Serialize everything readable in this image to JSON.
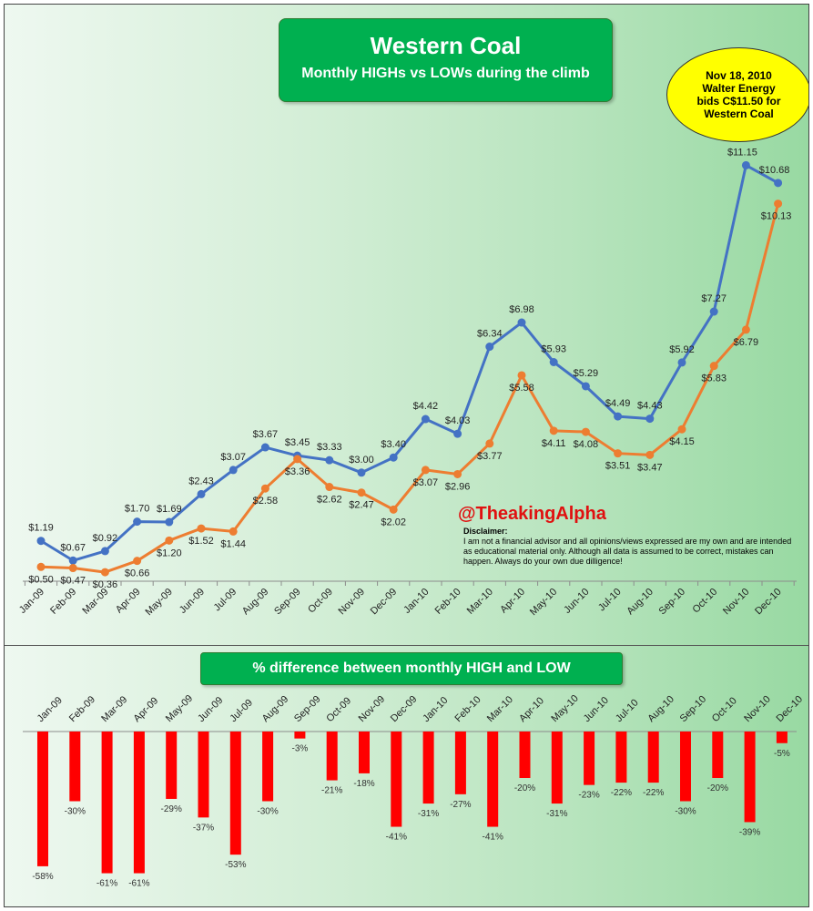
{
  "title": "Western Coal",
  "subtitle": "Monthly HIGHs vs LOWs during the climb",
  "bar_chart_title": "% difference between monthly HIGH and LOW",
  "annotation": {
    "lines": [
      "Nov 18, 2010",
      "Walter Energy",
      "bids C$11.50 for",
      "Western Coal"
    ]
  },
  "handle": "@TheakingAlpha",
  "disclaimer": {
    "heading": "Disclaimer:",
    "text": "I am not a financial advisor and all opinions/views expressed are my own and are intended as educational material only.  Although all data is assumed to be correct, mistakes can happen. Always do your own due dilligence!"
  },
  "colors": {
    "high": "#4472c4",
    "low": "#ed7d31",
    "bar": "#ff0000",
    "title_box": "#00b050",
    "annotation": "#ffff00"
  },
  "chart_data": [
    {
      "type": "line",
      "title": "Monthly HIGHs vs LOWs during the climb",
      "categories": [
        "Jan-09",
        "Feb-09",
        "Mar-09",
        "Apr-09",
        "May-09",
        "Jun-09",
        "Jul-09",
        "Aug-09",
        "Sep-09",
        "Oct-09",
        "Nov-09",
        "Dec-09",
        "Jan-10",
        "Feb-10",
        "Mar-10",
        "Apr-10",
        "May-10",
        "Jun-10",
        "Jul-10",
        "Aug-10",
        "Sep-10",
        "Oct-10",
        "Nov-10",
        "Dec-10"
      ],
      "series": [
        {
          "name": "High",
          "values": [
            1.19,
            0.67,
            0.92,
            1.7,
            1.69,
            2.43,
            3.07,
            3.67,
            3.45,
            3.33,
            3.0,
            3.4,
            4.42,
            4.03,
            6.34,
            6.98,
            5.93,
            5.29,
            4.49,
            4.43,
            5.92,
            7.27,
            11.15,
            10.68
          ],
          "labels": [
            "$1.19",
            "$0.67",
            "$0.92",
            "$1.70",
            "$1.69",
            "$2.43",
            "$3.07",
            "$3.67",
            "$3.45",
            "$3.33",
            "$3.00",
            "$3.40",
            "$4.42",
            "$4.03",
            "$6.34",
            "$6.98",
            "$5.93",
            "$5.29",
            "$4.49",
            "$4.43",
            "$5.92",
            "$7.27",
            "$11.15",
            "$10.68"
          ]
        },
        {
          "name": "Low",
          "values": [
            0.5,
            0.47,
            0.36,
            0.66,
            1.2,
            1.52,
            1.44,
            2.58,
            3.36,
            2.62,
            2.47,
            2.02,
            3.07,
            2.96,
            3.77,
            5.58,
            4.11,
            4.08,
            3.51,
            3.47,
            4.15,
            5.83,
            6.79,
            10.13
          ],
          "labels": [
            "$0.50",
            "$0.47",
            "$0.36",
            "$0.66",
            "$1.20",
            "$1.52",
            "$1.44",
            "$2.58",
            "$3.36",
            "$2.62",
            "$2.47",
            "$2.02",
            "$3.07",
            "$2.96",
            "$3.77",
            "$5.58",
            "$4.11",
            "$4.08",
            "$3.51",
            "$3.47",
            "$4.15",
            "$5.83",
            "$6.79",
            "$10.13"
          ]
        }
      ],
      "ylim": [
        0,
        12.4
      ],
      "grid": false
    },
    {
      "type": "bar",
      "title": "% difference between monthly HIGH and LOW",
      "categories": [
        "Jan-09",
        "Feb-09",
        "Mar-09",
        "Apr-09",
        "May-09",
        "Jun-09",
        "Jul-09",
        "Aug-09",
        "Sep-09",
        "Oct-09",
        "Nov-09",
        "Dec-09",
        "Jan-10",
        "Feb-10",
        "Mar-10",
        "Apr-10",
        "May-10",
        "Jun-10",
        "Jul-10",
        "Aug-10",
        "Sep-10",
        "Oct-10",
        "Nov-10",
        "Dec-10"
      ],
      "values": [
        -58,
        -30,
        -61,
        -61,
        -29,
        -37,
        -53,
        -30,
        -3,
        -21,
        -18,
        -41,
        -31,
        -27,
        -41,
        -20,
        -31,
        -23,
        -22,
        -22,
        -30,
        -20,
        -39,
        -5
      ],
      "labels": [
        "-58%",
        "-30%",
        "-61%",
        "-61%",
        "-29%",
        "-37%",
        "-53%",
        "-30%",
        "-3%",
        "-21%",
        "-18%",
        "-41%",
        "-31%",
        "-27%",
        "-41%",
        "-20%",
        "-31%",
        "-23%",
        "-22%",
        "-22%",
        "-30%",
        "-20%",
        "-39%",
        "-5%"
      ]
    }
  ]
}
